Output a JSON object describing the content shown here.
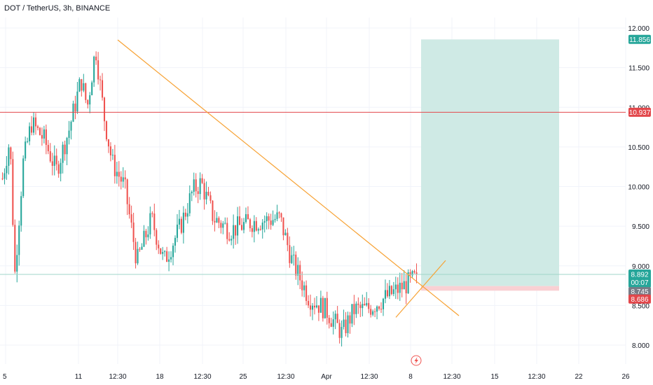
{
  "header": {
    "title": "DOT / TetherUS, 3h, BINANCE"
  },
  "colors": {
    "up": "#26a69a",
    "down": "#ef5350",
    "trendline": "#f7a234",
    "resistance": "#e2474b",
    "profit_zone": "#cfeae5",
    "stop_zone": "#f9d0d3",
    "current_line": "#9fd6c9",
    "grid": "#f0f3fa"
  },
  "chart_data": {
    "type": "candlestick",
    "symbol": "DOT / TetherUS",
    "interval": "3h",
    "exchange": "BINANCE",
    "ylim": [
      7.9,
      12.15
    ],
    "y_ticks": [
      8.0,
      8.5,
      9.0,
      9.5,
      10.0,
      10.5,
      11.0,
      11.5,
      12.0
    ],
    "y_tick_labels": [
      "8.000",
      "8.500",
      "9.000",
      "9.500",
      "10.000",
      "10.500",
      "11.000",
      "11.500",
      "12.000"
    ],
    "x_ticks": [
      "5",
      "11",
      "12:30",
      "18",
      "12:30",
      "25",
      "12:30",
      "Apr",
      "12:30",
      "8",
      "12:30",
      "15",
      "12:30",
      "22",
      "26"
    ],
    "grid": true,
    "price_path": [
      [
        0,
        10.1
      ],
      [
        0.018,
        10.6
      ],
      [
        0.03,
        8.9
      ],
      [
        0.05,
        10.3
      ],
      [
        0.07,
        10.8
      ],
      [
        0.1,
        10.6
      ],
      [
        0.13,
        10.2
      ],
      [
        0.16,
        10.7
      ],
      [
        0.19,
        11.35
      ],
      [
        0.205,
        11.0
      ],
      [
        0.225,
        11.75
      ],
      [
        0.245,
        10.9
      ],
      [
        0.265,
        10.3
      ],
      [
        0.295,
        10.0
      ],
      [
        0.325,
        9.05
      ],
      [
        0.36,
        9.6
      ],
      [
        0.39,
        9.05
      ],
      [
        0.43,
        9.5
      ],
      [
        0.46,
        9.95
      ],
      [
        0.48,
        10.05
      ],
      [
        0.51,
        9.6
      ],
      [
        0.55,
        9.45
      ],
      [
        0.6,
        9.55
      ],
      [
        0.67,
        9.6
      ],
      [
        0.7,
        9.05
      ],
      [
        0.74,
        8.6
      ],
      [
        0.78,
        8.45
      ],
      [
        0.82,
        8.15
      ],
      [
        0.85,
        8.45
      ],
      [
        0.88,
        8.45
      ],
      [
        1.0,
        8.85
      ]
    ],
    "trendline_start": {
      "x": "11",
      "y": 11.85
    },
    "trendline_end": {
      "x": "8",
      "y": 8.3
    },
    "support_line_start": {
      "x": "12:30",
      "y": 8.35
    },
    "support_line_end": {
      "x": "8",
      "y": 9.05
    },
    "resistance_level": 10.937,
    "current_price": 8.892,
    "countdown": "00:07",
    "entry_price": 8.745,
    "stop_price": 8.686,
    "target_price": 11.856
  },
  "axis_labels": {
    "target": "11.856",
    "resistance": "10.937",
    "current": "8.892",
    "countdown": "00:07",
    "entry": "8.745",
    "stop": "8.686"
  }
}
